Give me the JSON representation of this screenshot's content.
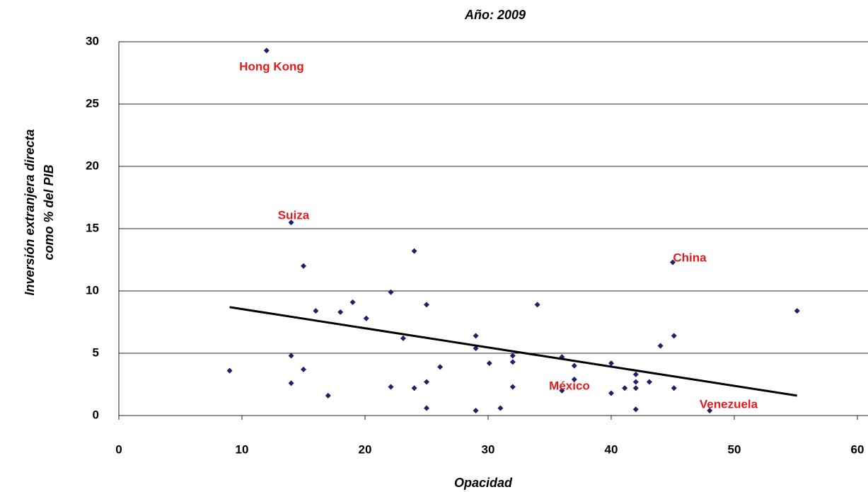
{
  "chart_data": {
    "type": "scatter",
    "title": "Año: 2009",
    "x_label": "Opacidad",
    "y_label": [
      "Inversión extranjera directa",
      "como % del PIB"
    ],
    "color": "#1f1f6b",
    "x": [
      12.0,
      14.0,
      15.0,
      24.0,
      45.0,
      22.1,
      19.0,
      16.0,
      18.0,
      20.1,
      25.0,
      34.0,
      55.1,
      23.1,
      29.0,
      29.0,
      45.1,
      44.0,
      9.0,
      14.0,
      14.0,
      15.0,
      17.0,
      22.1,
      24.0,
      25.0,
      25.0,
      26.1,
      29.0,
      30.1,
      31.0,
      32.0,
      32.0,
      32.0,
      36.0,
      36.0,
      37.0,
      37.0,
      40.0,
      40.0,
      41.1,
      42.0,
      42.0,
      42.0,
      42.0,
      43.1,
      45.1,
      48.0
    ],
    "y": [
      29.3,
      15.5,
      12.0,
      13.2,
      12.3,
      9.9,
      9.1,
      8.4,
      8.3,
      7.8,
      8.9,
      8.9,
      8.4,
      6.2,
      6.4,
      5.4,
      6.4,
      5.6,
      3.6,
      4.8,
      2.6,
      3.7,
      1.6,
      2.3,
      2.2,
      2.7,
      0.6,
      3.9,
      0.4,
      4.2,
      0.6,
      4.8,
      4.3,
      2.3,
      4.7,
      2.0,
      4.0,
      2.9,
      4.2,
      1.8,
      2.2,
      3.3,
      2.7,
      2.2,
      0.5,
      2.7,
      2.2,
      0.4
    ],
    "trendline": {
      "color": "#000000",
      "x": [
        9.0,
        55.1
      ],
      "y": [
        8.7,
        1.6
      ]
    },
    "annotations": [
      "Hong Kong",
      "Suiza",
      "China",
      "México",
      "Venezuela"
    ],
    "annotation_color": "#e8191a",
    "xlim": [
      0,
      60
    ],
    "xticks": [
      0,
      10,
      20,
      30,
      40,
      50,
      60
    ],
    "ylim": [
      0,
      30
    ],
    "yticks": [
      0,
      5,
      10,
      15,
      20,
      25,
      30
    ],
    "grid": true
  }
}
